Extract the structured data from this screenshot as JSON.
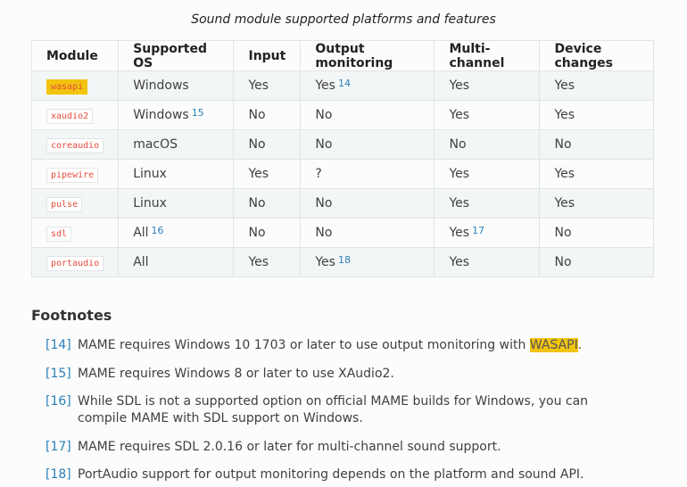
{
  "caption": "Sound module supported platforms and features",
  "table": {
    "headers": [
      "Module",
      "Supported OS",
      "Input",
      "Output monitoring",
      "Multi-channel",
      "Device changes"
    ],
    "rows": [
      {
        "module": "wasapi",
        "highlight": true,
        "os": "Windows",
        "os_fn": "",
        "input": "Yes",
        "output": "Yes",
        "output_fn": "14",
        "multi": "Yes",
        "multi_fn": "",
        "device": "Yes"
      },
      {
        "module": "xaudio2",
        "highlight": false,
        "os": "Windows",
        "os_fn": "15",
        "input": "No",
        "output": "No",
        "output_fn": "",
        "multi": "Yes",
        "multi_fn": "",
        "device": "Yes"
      },
      {
        "module": "coreaudio",
        "highlight": false,
        "os": "macOS",
        "os_fn": "",
        "input": "No",
        "output": "No",
        "output_fn": "",
        "multi": "No",
        "multi_fn": "",
        "device": "No"
      },
      {
        "module": "pipewire",
        "highlight": false,
        "os": "Linux",
        "os_fn": "",
        "input": "Yes",
        "output": "?",
        "output_fn": "",
        "multi": "Yes",
        "multi_fn": "",
        "device": "Yes"
      },
      {
        "module": "pulse",
        "highlight": false,
        "os": "Linux",
        "os_fn": "",
        "input": "No",
        "output": "No",
        "output_fn": "",
        "multi": "Yes",
        "multi_fn": "",
        "device": "Yes"
      },
      {
        "module": "sdl",
        "highlight": false,
        "os": "All",
        "os_fn": "16",
        "input": "No",
        "output": "No",
        "output_fn": "",
        "multi": "Yes",
        "multi_fn": "17",
        "device": "No"
      },
      {
        "module": "portaudio",
        "highlight": false,
        "os": "All",
        "os_fn": "",
        "input": "Yes",
        "output": "Yes",
        "output_fn": "18",
        "multi": "Yes",
        "multi_fn": "",
        "device": "No"
      }
    ]
  },
  "footnotes": {
    "heading": "Footnotes",
    "items": [
      {
        "ref": "[14]",
        "text": "MAME requires Windows 10 1703 or later to use output monitoring with ",
        "highlight": "WASAPI",
        "tail": "."
      },
      {
        "ref": "[15]",
        "text": "MAME requires Windows 8 or later to use XAudio2.",
        "highlight": "",
        "tail": ""
      },
      {
        "ref": "[16]",
        "text": "While SDL is not a supported option on official MAME builds for Windows, you can compile MAME with SDL support on Windows.",
        "highlight": "",
        "tail": ""
      },
      {
        "ref": "[17]",
        "text": "MAME requires SDL 2.0.16 or later for multi-channel sound support.",
        "highlight": "",
        "tail": ""
      },
      {
        "ref": "[18]",
        "text": "PortAudio support for output monitoring depends on the platform and sound API.",
        "highlight": "",
        "tail": ""
      }
    ]
  },
  "colors": {
    "link": "#2980b9",
    "code": "#e74c3c",
    "highlight": "#f1c40f",
    "stripe": "#f3f6f6"
  }
}
